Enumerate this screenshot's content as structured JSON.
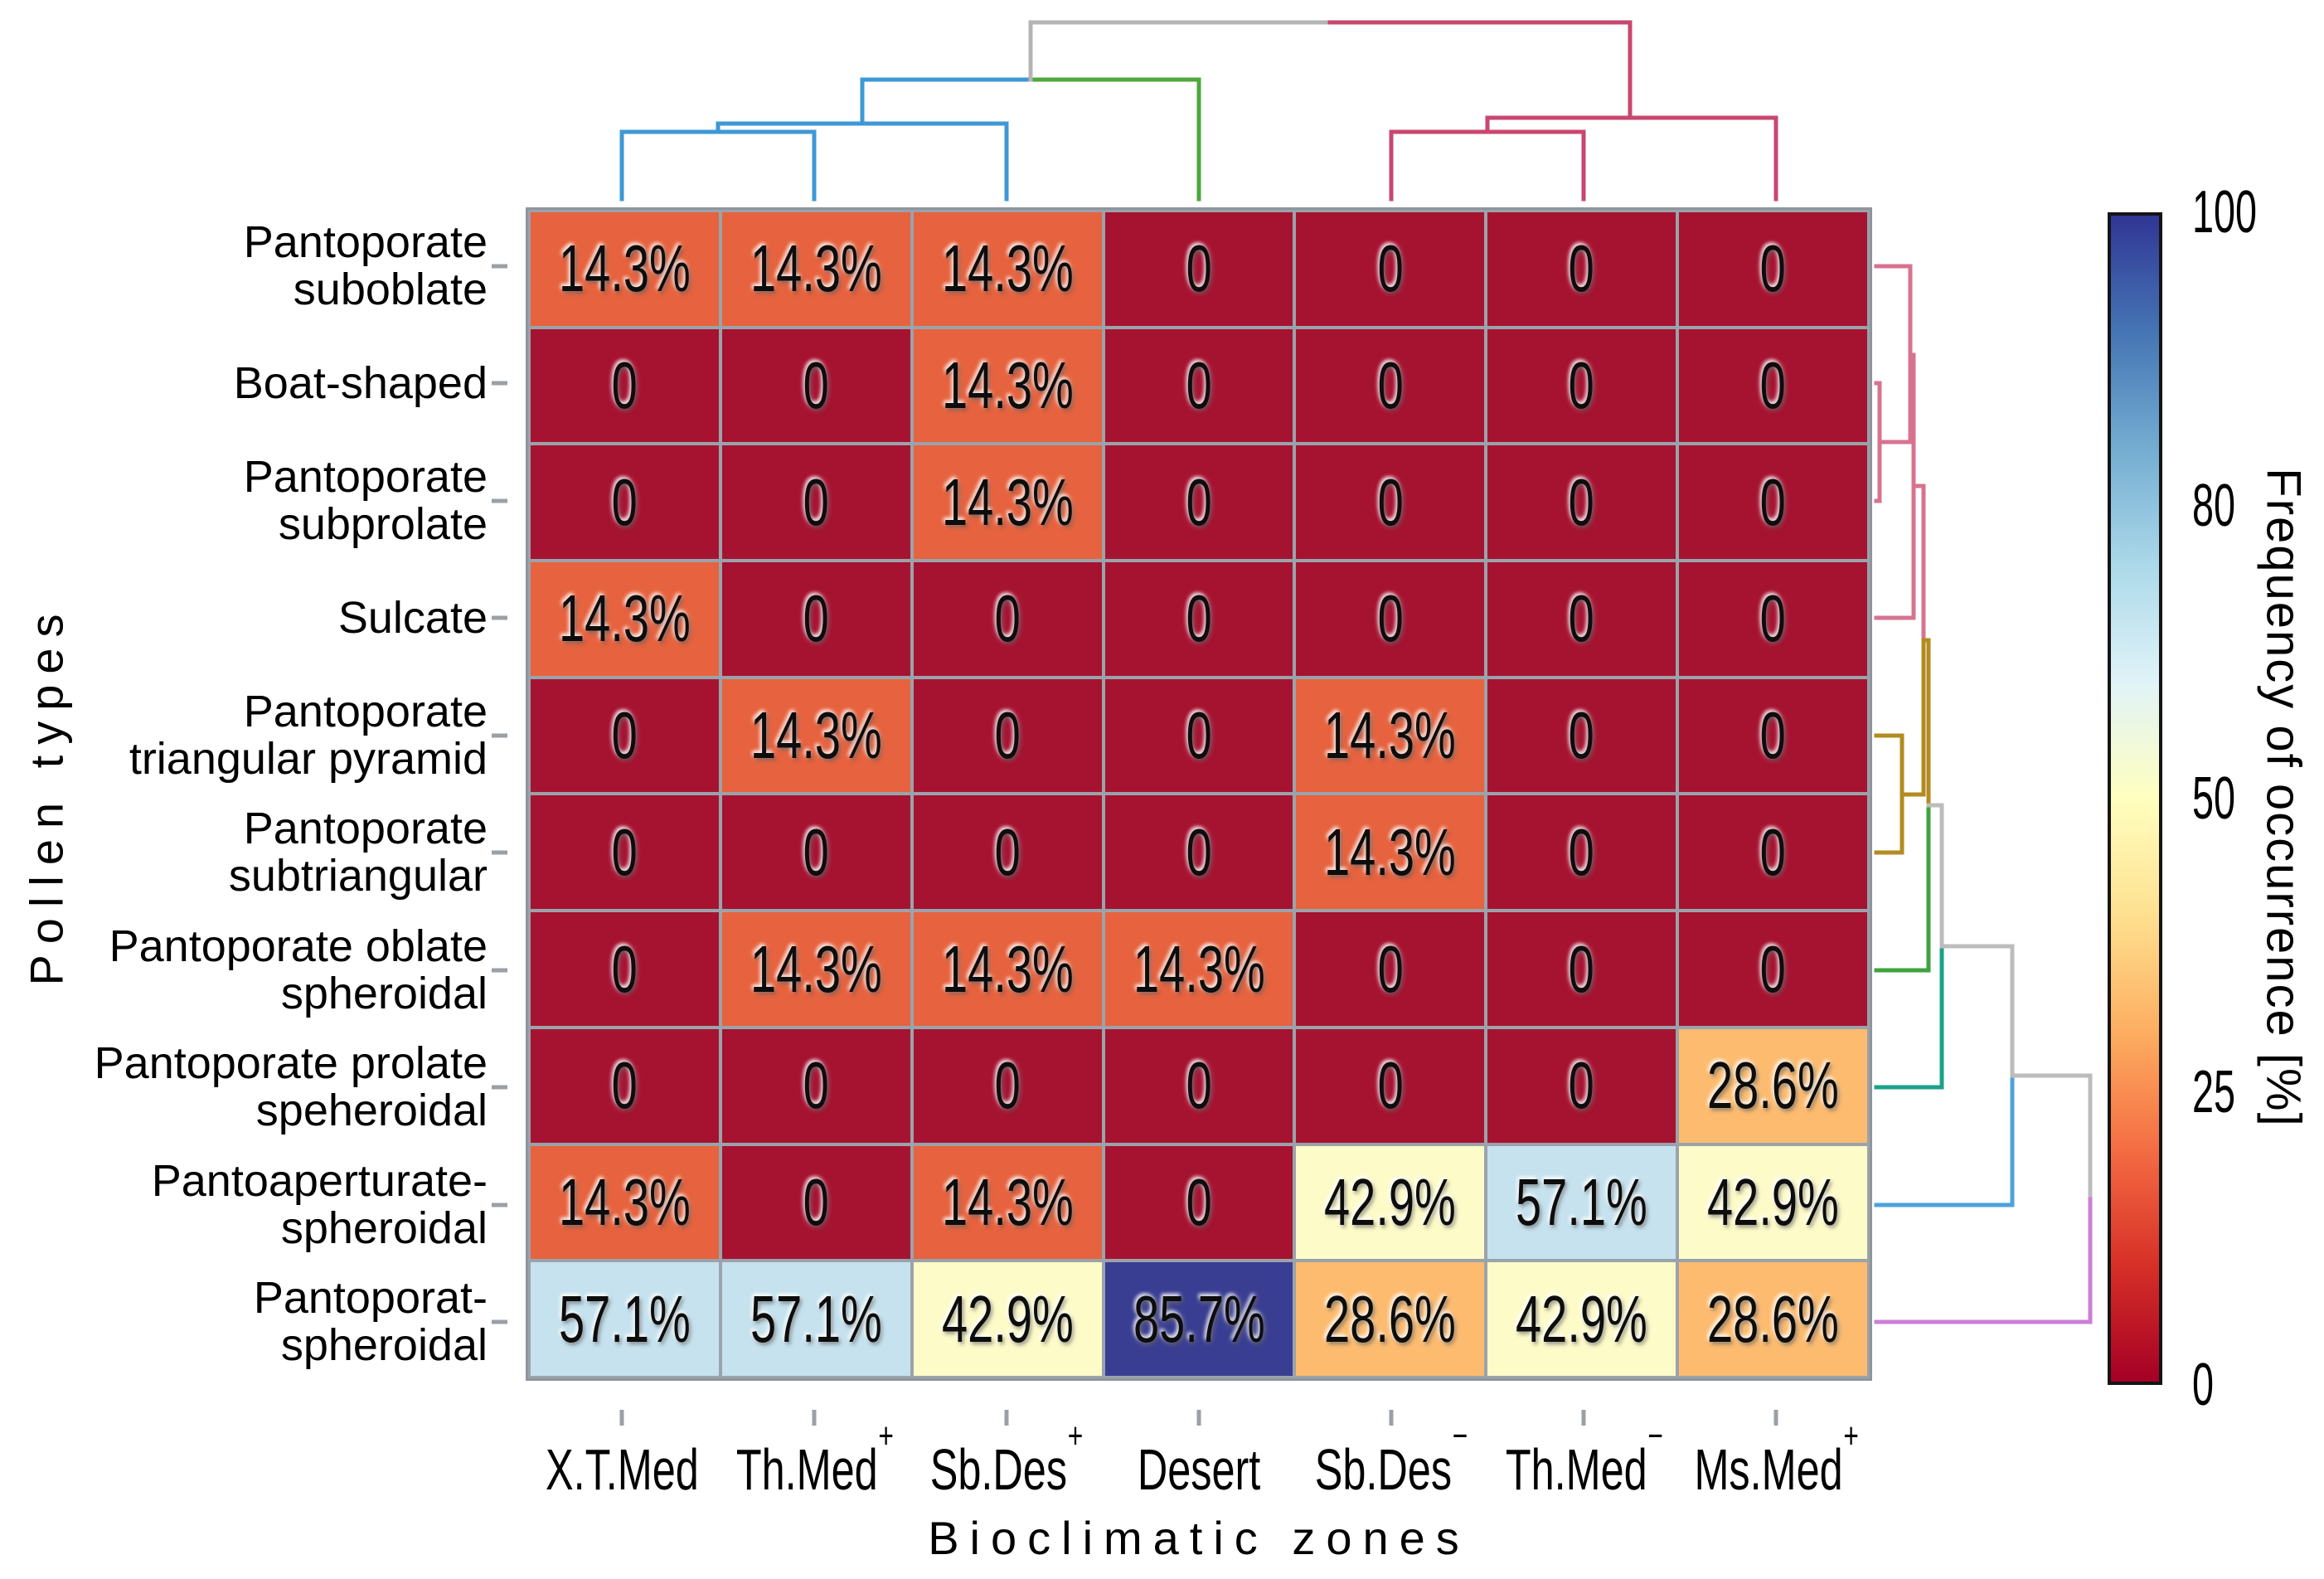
{
  "titles": {
    "y_axis": "Pollen types",
    "x_axis": "Bioclimatic zones",
    "colorbar": "Frequency of occurrence [%]"
  },
  "heatmap": {
    "row_labels_lines": [
      [
        "Pantoporate",
        "suboblate"
      ],
      [
        "Boat-shaped"
      ],
      [
        "Pantoporate",
        "subprolate"
      ],
      [
        "Sulcate"
      ],
      [
        "Pantoporate",
        "triangular pyramid"
      ],
      [
        "Pantoporate",
        "subtriangular"
      ],
      [
        "Pantoporate oblate",
        "spheroidal"
      ],
      [
        "Pantoporate prolate",
        "speheroidal"
      ],
      [
        "Pantoaperturate-",
        "spheroidal"
      ],
      [
        "Pantoporat-",
        "spheroidal"
      ]
    ],
    "col_labels": [
      {
        "base": "X.T.Med",
        "sup": ""
      },
      {
        "base": "Th.Med",
        "sup": "+"
      },
      {
        "base": "Sb.Des",
        "sup": "+"
      },
      {
        "base": "Desert",
        "sup": ""
      },
      {
        "base": "Sb.Des",
        "sup": "−"
      },
      {
        "base": "Th.Med",
        "sup": "−"
      },
      {
        "base": "Ms.Med",
        "sup": "+"
      }
    ],
    "cells": [
      [
        "14.3%",
        "14.3%",
        "14.3%",
        "0",
        "0",
        "0",
        "0"
      ],
      [
        "0",
        "0",
        "14.3%",
        "0",
        "0",
        "0",
        "0"
      ],
      [
        "0",
        "0",
        "14.3%",
        "0",
        "0",
        "0",
        "0"
      ],
      [
        "14.3%",
        "0",
        "0",
        "0",
        "0",
        "0",
        "0"
      ],
      [
        "0",
        "14.3%",
        "0",
        "0",
        "14.3%",
        "0",
        "0"
      ],
      [
        "0",
        "0",
        "0",
        "0",
        "14.3%",
        "0",
        "0"
      ],
      [
        "0",
        "14.3%",
        "14.3%",
        "14.3%",
        "0",
        "0",
        "0"
      ],
      [
        "0",
        "0",
        "0",
        "0",
        "0",
        "0",
        "28.6%"
      ],
      [
        "14.3%",
        "0",
        "14.3%",
        "0",
        "42.9%",
        "57.1%",
        "42.9%"
      ],
      [
        "57.1%",
        "57.1%",
        "42.9%",
        "85.7%",
        "28.6%",
        "42.9%",
        "28.6%"
      ]
    ],
    "value_colors": {
      "0": "#a61331",
      "14.3%": "#e7623e",
      "28.6%": "#fcbb6f",
      "42.9%": "#fdfbc8",
      "57.1%": "#c5e2ee",
      "85.7%": "#3a3e92"
    }
  },
  "colorbar": {
    "tick_labels_top_to_bottom": [
      "100",
      "80",
      "50",
      "25",
      "0"
    ],
    "gradient_stops_bottom_to_top": [
      "#a50026",
      "#d73027",
      "#f46d43",
      "#fdae61",
      "#fee090",
      "#ffffbf",
      "#e0f3f8",
      "#abd9e9",
      "#74add1",
      "#4575b4",
      "#313695"
    ]
  },
  "axis_ticks": {
    "color": "#9aa0a6",
    "x_tick_centers": [
      750,
      982,
      1214,
      1446,
      1678,
      1910,
      2142
    ],
    "x_tick_y": [
      1700,
      1719
    ],
    "y_tick_centers": [
      321,
      462,
      604,
      745,
      887,
      1028,
      1170,
      1311,
      1453,
      1594
    ],
    "y_tick_x": [
      593,
      612
    ]
  },
  "dendrograms": {
    "line_width": 5,
    "top_segments": [
      [
        750,
        159,
        750,
        240,
        "#3e98d5"
      ],
      [
        982,
        159,
        982,
        240,
        "#3e98d5"
      ],
      [
        750,
        159,
        982,
        159,
        "#3e98d5"
      ],
      [
        866,
        149,
        866,
        159,
        "#3e98d5"
      ],
      [
        866,
        149,
        1214,
        149,
        "#3e98d5"
      ],
      [
        1214,
        149,
        1214,
        240,
        "#3e98d5"
      ],
      [
        1040,
        96,
        1040,
        149,
        "#3e98d5"
      ],
      [
        1040,
        96,
        1243,
        96,
        "#3e98d5"
      ],
      [
        1243,
        96,
        1446,
        96,
        "#4ea73b"
      ],
      [
        1446,
        96,
        1446,
        240,
        "#4ea73b"
      ],
      [
        1243,
        27,
        1243,
        96,
        "#b4b4b4"
      ],
      [
        1243,
        27,
        1604,
        27,
        "#b4b4b4"
      ],
      [
        1604,
        27,
        1966,
        27,
        "#c8476f"
      ],
      [
        1966,
        27,
        1966,
        142,
        "#c8476f"
      ],
      [
        1794,
        142,
        2142,
        142,
        "#c8476f"
      ],
      [
        2142,
        142,
        2142,
        240,
        "#c8476f"
      ],
      [
        1794,
        142,
        1794,
        159,
        "#c8476f"
      ],
      [
        1678,
        159,
        1910,
        159,
        "#c8476f"
      ],
      [
        1678,
        159,
        1678,
        240,
        "#c8476f"
      ],
      [
        1910,
        159,
        1910,
        240,
        "#c8476f"
      ]
    ],
    "right_segments": [
      [
        2263,
        321,
        2304,
        321,
        "#d7738f"
      ],
      [
        2263,
        462,
        2267,
        462,
        "#d7738f"
      ],
      [
        2263,
        604,
        2267,
        604,
        "#d7738f"
      ],
      [
        2267,
        462,
        2267,
        604,
        "#d7738f"
      ],
      [
        2267,
        533,
        2304,
        533,
        "#d7738f"
      ],
      [
        2304,
        321,
        2304,
        533,
        "#d7738f"
      ],
      [
        2304,
        428,
        2308,
        428,
        "#d7738f"
      ],
      [
        2308,
        428,
        2308,
        745,
        "#d7738f"
      ],
      [
        2263,
        745,
        2308,
        745,
        "#d7738f"
      ],
      [
        2308,
        586,
        2320,
        586,
        "#d7738f"
      ],
      [
        2320,
        586,
        2320,
        772,
        "#d7738f"
      ],
      [
        2320,
        772,
        2320,
        958,
        "#b28b21"
      ],
      [
        2263,
        887,
        2294,
        887,
        "#b28b21"
      ],
      [
        2263,
        1028,
        2294,
        1028,
        "#b28b21"
      ],
      [
        2294,
        887,
        2294,
        1028,
        "#b28b21"
      ],
      [
        2294,
        958,
        2320,
        958,
        "#b28b21"
      ],
      [
        2320,
        772,
        2326,
        772,
        "#b28b21"
      ],
      [
        2326,
        772,
        2326,
        971,
        "#b28b21"
      ],
      [
        2326,
        971,
        2326,
        1170,
        "#3fa33b"
      ],
      [
        2263,
        1170,
        2326,
        1170,
        "#3fa33b"
      ],
      [
        2326,
        971,
        2342,
        971,
        "#bcbcbc"
      ],
      [
        2342,
        971,
        2342,
        1141,
        "#bcbcbc"
      ],
      [
        2342,
        1141,
        2342,
        1311,
        "#1ba289"
      ],
      [
        2263,
        1311,
        2342,
        1311,
        "#1ba289"
      ],
      [
        2342,
        1141,
        2427,
        1141,
        "#bcbcbc"
      ],
      [
        2427,
        1141,
        2427,
        1297,
        "#bcbcbc"
      ],
      [
        2427,
        1297,
        2427,
        1453,
        "#4da3dc"
      ],
      [
        2263,
        1453,
        2427,
        1453,
        "#4da3dc"
      ],
      [
        2427,
        1297,
        2521,
        1297,
        "#bcbcbc"
      ],
      [
        2521,
        1297,
        2521,
        1446,
        "#bcbcbc"
      ],
      [
        2521,
        1446,
        2521,
        1594,
        "#cb7fd8"
      ],
      [
        2263,
        1594,
        2521,
        1594,
        "#cb7fd8"
      ]
    ]
  },
  "chart_data": {
    "type": "heatmap",
    "title": "",
    "xlabel": "Bioclimatic zones",
    "ylabel": "Pollen types",
    "colorbar_label": "Frequency of occurrence [%]",
    "colorbar_tick_labels": [
      "0",
      "25",
      "50",
      "80",
      "100"
    ],
    "colorbar_range": [
      0,
      100
    ],
    "columns": [
      "X.T.Med",
      "Th.Med+",
      "Sb.Des+",
      "Desert",
      "Sb.Des−",
      "Th.Med−",
      "Ms.Med+"
    ],
    "rows": [
      "Pantoporate suboblate",
      "Boat-shaped",
      "Pantoporate subprolate",
      "Sulcate",
      "Pantoporate triangular pyramid",
      "Pantoporate subtriangular",
      "Pantoporate oblate spheroidal",
      "Pantoporate prolate speheroidal",
      "Pantoaperturate-spheroidal",
      "Pantoporat-spheroidal"
    ],
    "values_percent": [
      [
        14.3,
        14.3,
        14.3,
        0,
        0,
        0,
        0
      ],
      [
        0,
        0,
        14.3,
        0,
        0,
        0,
        0
      ],
      [
        0,
        0,
        14.3,
        0,
        0,
        0,
        0
      ],
      [
        14.3,
        0,
        0,
        0,
        0,
        0,
        0
      ],
      [
        0,
        14.3,
        0,
        0,
        14.3,
        0,
        0
      ],
      [
        0,
        0,
        0,
        0,
        14.3,
        0,
        0
      ],
      [
        0,
        14.3,
        14.3,
        14.3,
        0,
        0,
        0
      ],
      [
        0,
        0,
        0,
        0,
        0,
        0,
        28.6
      ],
      [
        14.3,
        0,
        14.3,
        0,
        42.9,
        57.1,
        42.9
      ],
      [
        57.1,
        57.1,
        42.9,
        85.7,
        28.6,
        42.9,
        28.6
      ]
    ],
    "row_clustering": "dendrogram on right side",
    "column_clustering": "dendrogram on top",
    "legend_position": "right colorbar"
  }
}
